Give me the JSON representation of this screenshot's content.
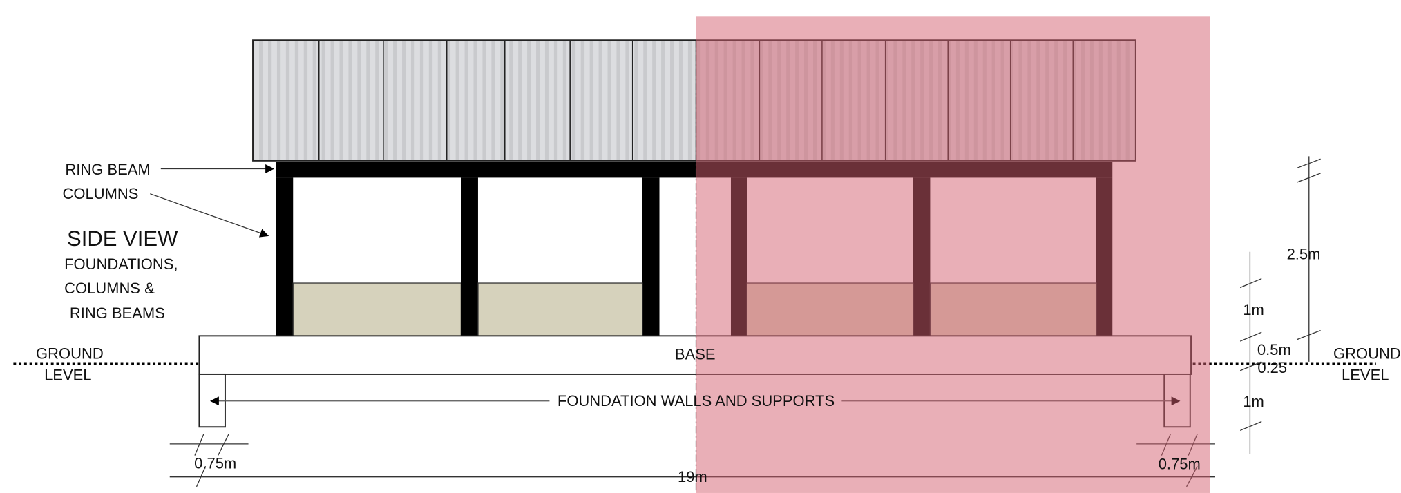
{
  "labels": {
    "ring_beam": "RING BEAM",
    "columns": "COLUMNS",
    "title": "SIDE VIEW",
    "subtitle": [
      "FOUNDATIONS,",
      "COLUMNS &",
      "RING BEAMS"
    ],
    "ground_left": [
      "GROUND",
      "LEVEL"
    ],
    "ground_right": [
      "GROUND",
      "LEVEL"
    ],
    "base": "BASE",
    "foundation": "FOUNDATION WALLS AND SUPPORTS"
  },
  "dimensions": {
    "left_support": "0.75m",
    "right_support": "0.75m",
    "length": "19m",
    "height_total": "2.5m",
    "infill": "1m",
    "base": "0.5m",
    "below_ground": "0.25",
    "foundation": "1m"
  }
}
